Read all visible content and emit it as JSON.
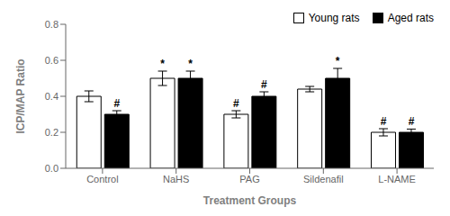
{
  "chart_data": {
    "type": "bar",
    "categories": [
      "Control",
      "NaHS",
      "PAG",
      "Sildenafil",
      "L-NAME"
    ],
    "series": [
      {
        "name": "Young rats",
        "color": "white",
        "values": [
          0.4,
          0.5,
          0.3,
          0.44,
          0.2
        ],
        "errors": [
          0.03,
          0.04,
          0.02,
          0.015,
          0.02
        ],
        "annotations": [
          null,
          "*",
          "#",
          null,
          "#"
        ]
      },
      {
        "name": "Aged rats",
        "color": "black",
        "values": [
          0.3,
          0.5,
          0.4,
          0.5,
          0.2
        ],
        "errors": [
          0.02,
          0.04,
          0.025,
          0.055,
          0.018
        ],
        "annotations": [
          "#",
          "*",
          "#",
          "*",
          "#"
        ]
      }
    ],
    "xlabel": "Treatment Groups",
    "ylabel": "ICP/MAP Ratio",
    "ylim": [
      0,
      0.8
    ],
    "yticks": [
      {
        "value": 0,
        "label": "0.0"
      },
      0.2,
      0.4,
      0.6,
      0.8
    ],
    "grid": false,
    "legend": "upper right"
  }
}
